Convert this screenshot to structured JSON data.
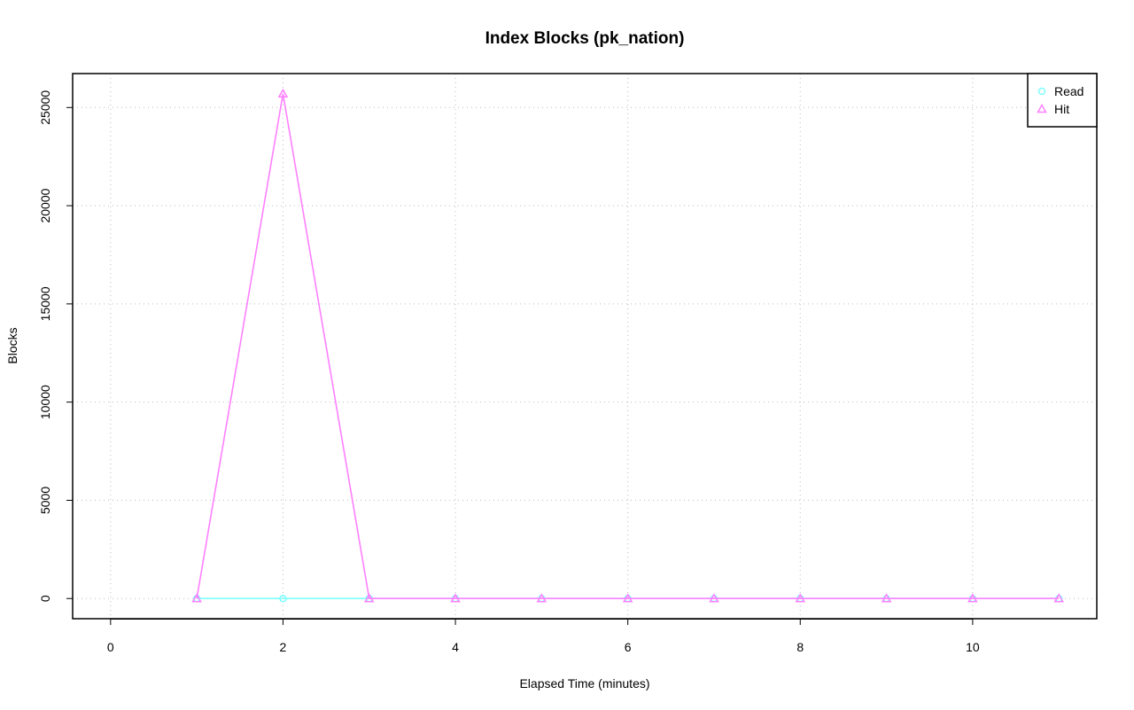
{
  "chart_data": {
    "type": "line",
    "title": "Index Blocks (pk_nation)",
    "xlabel": "Elapsed Time (minutes)",
    "ylabel": "Blocks",
    "x": [
      1,
      2,
      3,
      4,
      5,
      6,
      7,
      8,
      9,
      10,
      11
    ],
    "series": [
      {
        "name": "Read",
        "color": "#7fffff",
        "marker": "circle",
        "values": [
          0,
          0,
          0,
          0,
          0,
          0,
          0,
          0,
          0,
          0,
          0
        ]
      },
      {
        "name": "Hit",
        "color": "#ff80ff",
        "marker": "triangle",
        "values": [
          0,
          25700,
          0,
          0,
          0,
          0,
          0,
          0,
          0,
          0,
          0
        ]
      }
    ],
    "xlim": [
      -0.44,
      11.44
    ],
    "xticks": [
      0,
      2,
      4,
      6,
      8,
      10
    ],
    "ylim": [
      -1028,
      26728
    ],
    "yticks": [
      0,
      5000,
      10000,
      15000,
      20000,
      25000
    ],
    "grid": true,
    "legend": "top-right"
  }
}
